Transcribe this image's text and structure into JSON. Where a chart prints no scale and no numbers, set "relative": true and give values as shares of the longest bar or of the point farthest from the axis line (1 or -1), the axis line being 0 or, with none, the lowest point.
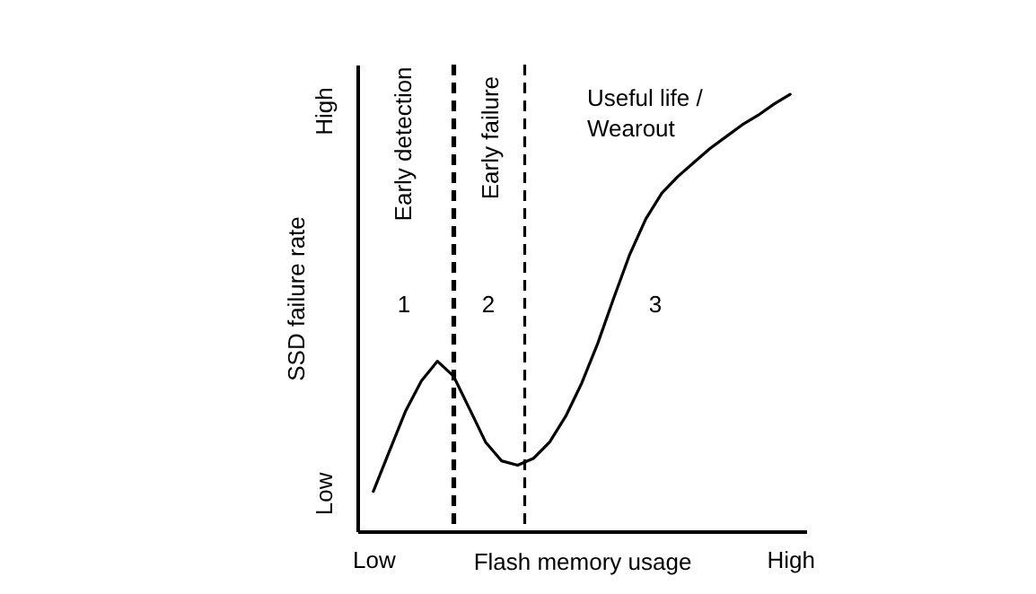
{
  "chart_data": {
    "type": "line",
    "relative": true,
    "xlabel": "Flash memory usage",
    "ylabel": "SSD failure rate",
    "categories": [
      "Low",
      null,
      null,
      null,
      null,
      null,
      null,
      null,
      null,
      null,
      null,
      null,
      null,
      null,
      null,
      null,
      null,
      null,
      null,
      null,
      null,
      null,
      null,
      null,
      null,
      null,
      "High"
    ],
    "values": [
      0.091,
      0.183,
      0.274,
      0.344,
      0.389,
      0.355,
      0.28,
      0.204,
      0.161,
      0.151,
      0.167,
      0.204,
      0.263,
      0.339,
      0.43,
      0.534,
      0.634,
      0.715,
      0.774,
      0.812,
      0.844,
      0.876,
      0.903,
      0.93,
      0.952,
      0.978,
      1
    ],
    "color": "#000000",
    "annotations": [
      "Early detection",
      "Early failure",
      "Useful life /\nWearout",
      "1",
      "2",
      "3",
      "Low",
      "High"
    ]
  }
}
